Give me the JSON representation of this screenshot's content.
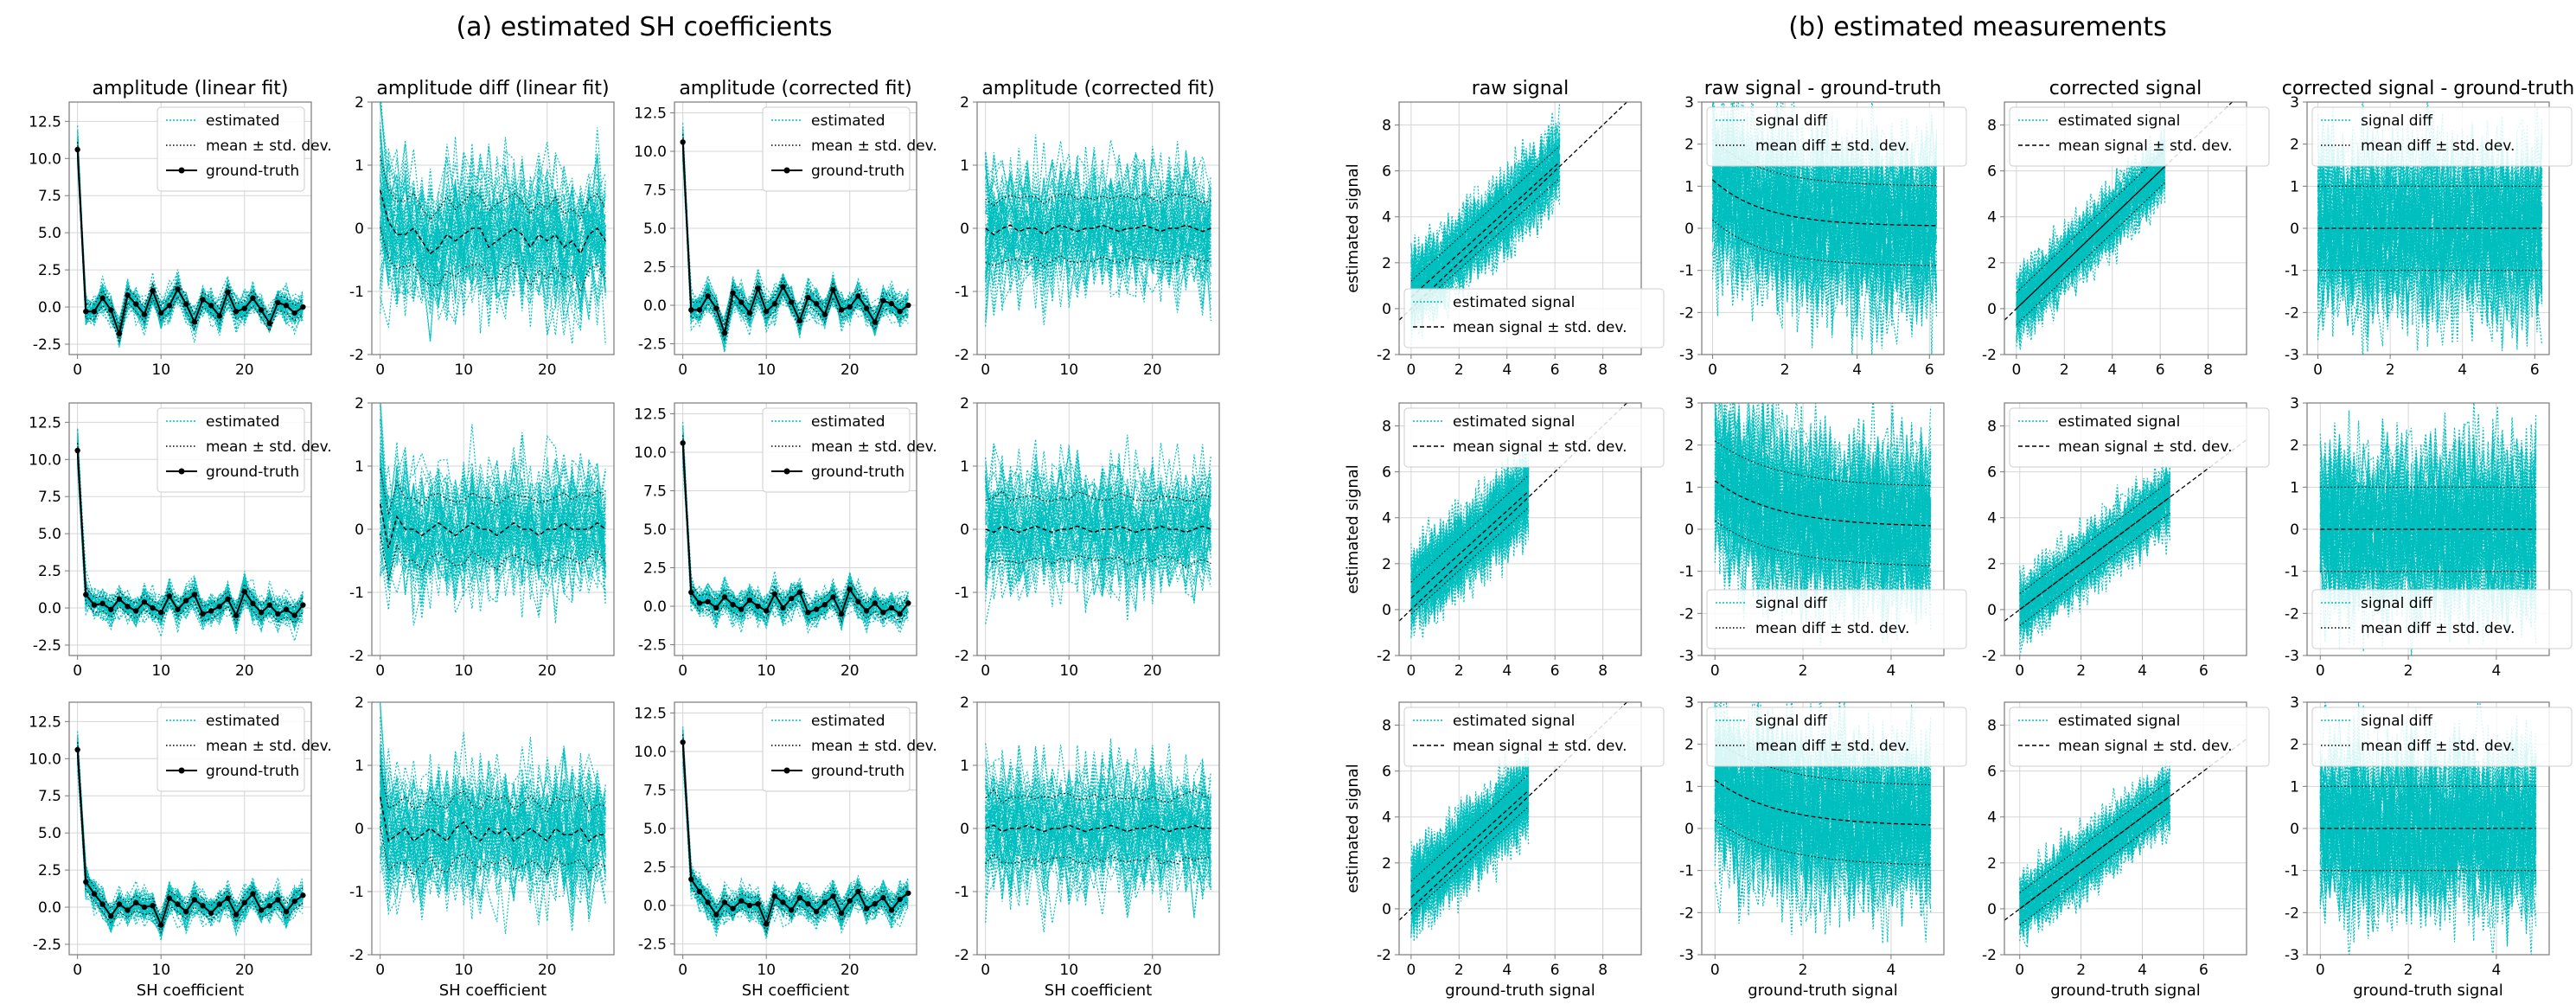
{
  "titles": {
    "a": "(a) estimated SH coefficients",
    "b": "(b) estimated measurements"
  },
  "colors": {
    "cyan": "#00bfbf",
    "black": "#000000",
    "grid": "#d6d6d6",
    "frame": "#7a7a7a"
  },
  "chart_data": [
    {
      "type": "line",
      "group": "a",
      "row": 0,
      "col": 0,
      "kind": "amp",
      "title": "amplitude (linear fit)",
      "xlabel": "",
      "ylabel": "",
      "xlim": [
        -1,
        28
      ],
      "ylim": [
        -3.2,
        13.8
      ],
      "xticks": [
        "0",
        "10",
        "20"
      ],
      "yticks": [
        "-2.5",
        "0.0",
        "2.5",
        "5.0",
        "7.5",
        "10.0",
        "12.5"
      ],
      "legend": [
        "estimated",
        "mean ± std. dev.",
        "ground-truth"
      ],
      "ground_truth": [
        10.6,
        -0.3,
        -0.3,
        0.6,
        -0.2,
        -1.8,
        0.8,
        0.2,
        -0.5,
        1.1,
        -0.4,
        0.1,
        1.2,
        0.2,
        -1.0,
        0.5,
        0.1,
        -0.6,
        1.0,
        -0.3,
        -0.1,
        0.6,
        -0.2,
        -1.1,
        0.3,
        0.1,
        -0.4,
        0.0
      ]
    },
    {
      "type": "line",
      "group": "a",
      "row": 0,
      "col": 1,
      "kind": "diff",
      "title": "amplitude diff (linear fit)",
      "xlabel": "",
      "ylabel": "",
      "xlim": [
        -1,
        28
      ],
      "ylim": [
        -2,
        2
      ],
      "xticks": [
        "0",
        "10",
        "20"
      ],
      "yticks": [
        "-2",
        "-1",
        "0",
        "1",
        "2"
      ],
      "mean": [
        0.6,
        0.1,
        -0.1,
        -0.1,
        0.0,
        -0.2,
        -0.4,
        -0.3,
        -0.1,
        -0.2,
        -0.1,
        0.0,
        0.0,
        -0.3,
        -0.2,
        -0.1,
        0.0,
        -0.1,
        -0.3,
        -0.1,
        -0.2,
        -0.1,
        -0.3,
        -0.2,
        -0.4,
        -0.1,
        0.0,
        -0.2
      ],
      "std": 0.55
    },
    {
      "type": "line",
      "group": "a",
      "row": 0,
      "col": 2,
      "kind": "amp",
      "title": "amplitude (corrected fit)",
      "xlabel": "",
      "ylabel": "",
      "xlim": [
        -1,
        28
      ],
      "ylim": [
        -3.2,
        13.2
      ],
      "xticks": [
        "0",
        "10",
        "20"
      ],
      "yticks": [
        "-2.5",
        "0.0",
        "2.5",
        "5.0",
        "7.5",
        "10.0",
        "12.5"
      ],
      "legend": [
        "estimated",
        "mean ± std. dev.",
        "ground-truth"
      ],
      "ground_truth": [
        10.6,
        -0.3,
        -0.3,
        0.6,
        -0.2,
        -1.8,
        0.8,
        0.2,
        -0.5,
        1.1,
        -0.4,
        0.1,
        1.2,
        0.2,
        -1.0,
        0.5,
        0.1,
        -0.6,
        1.0,
        -0.3,
        -0.1,
        0.6,
        -0.2,
        -1.1,
        0.3,
        0.1,
        -0.4,
        0.0
      ]
    },
    {
      "type": "line",
      "group": "a",
      "row": 0,
      "col": 3,
      "kind": "diff",
      "title": "amplitude (corrected fit)",
      "xlabel": "",
      "ylabel": "",
      "xlim": [
        -1,
        28
      ],
      "ylim": [
        -2,
        2
      ],
      "xticks": [
        "0",
        "10",
        "20"
      ],
      "yticks": [
        "-2",
        "-1",
        "0",
        "1",
        "2"
      ],
      "mean": [
        0.0,
        -0.1,
        0.0,
        0.05,
        -0.05,
        0.0,
        0.0,
        -0.1,
        0.0,
        0.05,
        0.0,
        -0.05,
        0.0,
        0.0,
        0.05,
        0.0,
        -0.05,
        0.0,
        0.0,
        0.05,
        0.0,
        -0.05,
        0.0,
        0.0,
        0.05,
        0.0,
        -0.05,
        0.0
      ],
      "std": 0.5
    },
    {
      "type": "line",
      "group": "a",
      "row": 1,
      "col": 0,
      "kind": "amp",
      "title": "",
      "xlabel": "",
      "ylabel": "",
      "xlim": [
        -1,
        28
      ],
      "ylim": [
        -3.2,
        13.8
      ],
      "xticks": [
        "0",
        "10",
        "20"
      ],
      "yticks": [
        "-2.5",
        "0.0",
        "2.5",
        "5.0",
        "7.5",
        "10.0",
        "12.5"
      ],
      "legend": [
        "estimated",
        "mean ± std. dev.",
        "ground-truth"
      ],
      "ground_truth": [
        10.6,
        0.9,
        0.2,
        0.3,
        -0.1,
        0.6,
        0.1,
        -0.2,
        0.4,
        0.0,
        -0.3,
        0.8,
        -0.1,
        0.5,
        0.9,
        -0.4,
        -0.2,
        0.1,
        0.6,
        -0.5,
        1.1,
        0.3,
        -0.3,
        0.2,
        -0.4,
        -0.1,
        -0.5,
        0.2
      ]
    },
    {
      "type": "line",
      "group": "a",
      "row": 1,
      "col": 1,
      "kind": "diff",
      "title": "",
      "xlabel": "",
      "ylabel": "",
      "xlim": [
        -1,
        28
      ],
      "ylim": [
        -2,
        2
      ],
      "xticks": [
        "0",
        "10",
        "20"
      ],
      "yticks": [
        "-2",
        "-1",
        "0",
        "1",
        "2"
      ],
      "mean": [
        0.4,
        -0.3,
        0.2,
        0.0,
        0.0,
        -0.1,
        0.0,
        0.1,
        0.0,
        -0.1,
        0.0,
        0.1,
        0.0,
        0.0,
        -0.1,
        0.0,
        0.1,
        0.0,
        0.0,
        -0.1,
        0.0,
        0.0,
        0.1,
        0.0,
        0.0,
        0.0,
        0.1,
        0.0
      ],
      "std": 0.5
    },
    {
      "type": "line",
      "group": "a",
      "row": 1,
      "col": 2,
      "kind": "amp",
      "title": "",
      "xlabel": "",
      "ylabel": "",
      "xlim": [
        -1,
        28
      ],
      "ylim": [
        -3.2,
        13.2
      ],
      "xticks": [
        "0",
        "10",
        "20"
      ],
      "yticks": [
        "-2.5",
        "0.0",
        "2.5",
        "5.0",
        "7.5",
        "10.0",
        "12.5"
      ],
      "legend": [
        "estimated",
        "mean ± std. dev.",
        "ground-truth"
      ],
      "ground_truth": [
        10.6,
        0.9,
        0.2,
        0.3,
        -0.1,
        0.6,
        0.1,
        -0.2,
        0.4,
        0.0,
        -0.3,
        0.8,
        -0.1,
        0.5,
        0.9,
        -0.4,
        -0.2,
        0.1,
        0.6,
        -0.5,
        1.1,
        0.3,
        -0.3,
        0.2,
        -0.4,
        -0.1,
        -0.5,
        0.2
      ]
    },
    {
      "type": "line",
      "group": "a",
      "row": 1,
      "col": 3,
      "kind": "diff",
      "title": "",
      "xlabel": "",
      "ylabel": "",
      "xlim": [
        -1,
        28
      ],
      "ylim": [
        -2,
        2
      ],
      "xticks": [
        "0",
        "10",
        "20"
      ],
      "yticks": [
        "-2",
        "-1",
        "0",
        "1",
        "2"
      ],
      "mean": [
        0.0,
        -0.05,
        0.05,
        0.0,
        -0.05,
        0.0,
        0.05,
        0.0,
        -0.05,
        0.0,
        0.0,
        0.05,
        0.0,
        -0.05,
        0.0,
        0.0,
        0.05,
        0.0,
        -0.05,
        0.0,
        0.0,
        0.05,
        0.0,
        0.0,
        -0.05,
        0.0,
        0.05,
        0.0
      ],
      "std": 0.5
    },
    {
      "type": "line",
      "group": "a",
      "row": 2,
      "col": 0,
      "kind": "amp",
      "title": "",
      "xlabel": "SH coefficient",
      "ylabel": "",
      "xlim": [
        -1,
        28
      ],
      "ylim": [
        -3.2,
        13.8
      ],
      "xticks": [
        "0",
        "10",
        "20"
      ],
      "yticks": [
        "-2.5",
        "0.0",
        "2.5",
        "5.0",
        "7.5",
        "10.0",
        "12.5"
      ],
      "legend": [
        "estimated",
        "mean ± std. dev.",
        "ground-truth"
      ],
      "ground_truth": [
        10.6,
        1.7,
        0.9,
        0.2,
        -0.6,
        0.2,
        -0.2,
        0.3,
        0.0,
        0.1,
        -1.2,
        0.6,
        0.2,
        -0.3,
        0.5,
        0.1,
        -0.4,
        0.2,
        0.6,
        -0.5,
        0.3,
        0.9,
        -0.2,
        0.1,
        0.5,
        -0.3,
        0.4,
        0.8
      ]
    },
    {
      "type": "line",
      "group": "a",
      "row": 2,
      "col": 1,
      "kind": "diff",
      "title": "",
      "xlabel": "SH coefficient",
      "ylabel": "",
      "xlim": [
        -1,
        28
      ],
      "ylim": [
        -2,
        2
      ],
      "xticks": [
        "0",
        "10",
        "20"
      ],
      "yticks": [
        "-2",
        "-1",
        "0",
        "1",
        "2"
      ],
      "mean": [
        0.5,
        -0.2,
        -0.1,
        0.0,
        -0.2,
        -0.1,
        0.0,
        -0.1,
        -0.2,
        0.0,
        0.1,
        -0.1,
        -0.2,
        0.0,
        -0.1,
        0.0,
        -0.2,
        -0.1,
        0.0,
        -0.1,
        -0.2,
        0.0,
        -0.1,
        -0.1,
        0.0,
        -0.2,
        -0.1,
        -0.1
      ],
      "std": 0.5
    },
    {
      "type": "line",
      "group": "a",
      "row": 2,
      "col": 2,
      "kind": "amp",
      "title": "",
      "xlabel": "SH coefficient",
      "ylabel": "",
      "xlim": [
        -1,
        28
      ],
      "ylim": [
        -3.2,
        13.2
      ],
      "xticks": [
        "0",
        "10",
        "20"
      ],
      "yticks": [
        "-2.5",
        "0.0",
        "2.5",
        "5.0",
        "7.5",
        "10.0",
        "12.5"
      ],
      "legend": [
        "estimated",
        "mean ± std. dev.",
        "ground-truth"
      ],
      "ground_truth": [
        10.6,
        1.7,
        0.9,
        0.2,
        -0.6,
        0.2,
        -0.2,
        0.3,
        0.0,
        0.1,
        -1.2,
        0.6,
        0.2,
        -0.3,
        0.5,
        0.1,
        -0.4,
        0.2,
        0.6,
        -0.5,
        0.3,
        0.9,
        -0.2,
        0.1,
        0.5,
        -0.3,
        0.4,
        0.8
      ]
    },
    {
      "type": "line",
      "group": "a",
      "row": 2,
      "col": 3,
      "kind": "diff",
      "title": "",
      "xlabel": "SH coefficient",
      "ylabel": "",
      "xlim": [
        -1,
        28
      ],
      "ylim": [
        -2,
        2
      ],
      "xticks": [
        "0",
        "10",
        "20"
      ],
      "yticks": [
        "-2",
        "-1",
        "0",
        "1",
        "2"
      ],
      "mean": [
        0.0,
        0.05,
        -0.05,
        0.0,
        0.0,
        0.05,
        0.0,
        -0.05,
        0.0,
        0.0,
        0.05,
        0.0,
        -0.05,
        0.0,
        0.0,
        0.05,
        0.0,
        -0.05,
        0.0,
        0.0,
        0.05,
        0.0,
        -0.05,
        0.0,
        0.0,
        0.05,
        0.0,
        0.0
      ],
      "std": 0.5
    },
    {
      "type": "line",
      "group": "b",
      "row": 0,
      "col": 0,
      "kind": "sig_raw",
      "title": "raw signal",
      "xlabel": "",
      "ylabel": "estimated signal",
      "xlim": [
        -0.5,
        9.6
      ],
      "ylim": [
        -2,
        9
      ],
      "xticks": [
        "0",
        "2",
        "4",
        "6",
        "8"
      ],
      "yticks": [
        "-2",
        "0",
        "2",
        "4",
        "6",
        "8"
      ],
      "legend": [
        "estimated signal",
        "mean signal ± std. dev."
      ],
      "x_max": 6.2
    },
    {
      "type": "line",
      "group": "b",
      "row": 0,
      "col": 1,
      "kind": "sigdiff_raw",
      "title": "raw signal - ground-truth",
      "xlabel": "",
      "ylabel": "",
      "xlim": [
        -0.3,
        6.4
      ],
      "ylim": [
        -3,
        3
      ],
      "xticks": [
        "0",
        "2",
        "4",
        "6"
      ],
      "yticks": [
        "-3",
        "-2",
        "-1",
        "0",
        "1",
        "2",
        "3"
      ],
      "legend": [
        "signal diff",
        "mean diff ± std. dev."
      ],
      "x_max": 6.2
    },
    {
      "type": "line",
      "group": "b",
      "row": 0,
      "col": 2,
      "kind": "sig_corr",
      "title": "corrected signal",
      "xlabel": "",
      "ylabel": "",
      "xlim": [
        -0.5,
        9.6
      ],
      "ylim": [
        -2,
        9
      ],
      "xticks": [
        "0",
        "2",
        "4",
        "6",
        "8"
      ],
      "yticks": [
        "-2",
        "0",
        "2",
        "4",
        "6",
        "8"
      ],
      "legend": [
        "estimated signal",
        "mean signal ± std. dev."
      ],
      "x_max": 6.2
    },
    {
      "type": "line",
      "group": "b",
      "row": 0,
      "col": 3,
      "kind": "sigdiff_corr",
      "title": "corrected signal - ground-truth",
      "xlabel": "",
      "ylabel": "",
      "xlim": [
        -0.3,
        6.4
      ],
      "ylim": [
        -3,
        3
      ],
      "xticks": [
        "0",
        "2",
        "4",
        "6"
      ],
      "yticks": [
        "-3",
        "-2",
        "-1",
        "0",
        "1",
        "2",
        "3"
      ],
      "legend": [
        "signal diff",
        "mean diff ± std. dev."
      ],
      "x_max": 6.2
    },
    {
      "type": "line",
      "group": "b",
      "row": 1,
      "col": 0,
      "kind": "sig_raw",
      "title": "",
      "xlabel": "",
      "ylabel": "estimated signal",
      "xlim": [
        -0.5,
        9.6
      ],
      "ylim": [
        -2,
        9
      ],
      "xticks": [
        "0",
        "2",
        "4",
        "6",
        "8"
      ],
      "yticks": [
        "-2",
        "0",
        "2",
        "4",
        "6",
        "8"
      ],
      "legend": [
        "estimated signal",
        "mean signal ± std. dev."
      ],
      "x_max": 4.9
    },
    {
      "type": "line",
      "group": "b",
      "row": 1,
      "col": 1,
      "kind": "sigdiff_raw",
      "title": "",
      "xlabel": "",
      "ylabel": "",
      "xlim": [
        -0.3,
        5.2
      ],
      "ylim": [
        -3,
        3
      ],
      "xticks": [
        "0",
        "2",
        "4"
      ],
      "yticks": [
        "-3",
        "-2",
        "-1",
        "0",
        "1",
        "2",
        "3"
      ],
      "legend": [
        "signal diff",
        "mean diff ± std. dev."
      ],
      "x_max": 4.9
    },
    {
      "type": "line",
      "group": "b",
      "row": 1,
      "col": 2,
      "kind": "sig_corr",
      "title": "",
      "xlabel": "",
      "ylabel": "",
      "xlim": [
        -0.5,
        7.4
      ],
      "ylim": [
        -2,
        9
      ],
      "xticks": [
        "0",
        "2",
        "4",
        "6"
      ],
      "yticks": [
        "-2",
        "0",
        "2",
        "4",
        "6",
        "8"
      ],
      "legend": [
        "estimated signal",
        "mean signal ± std. dev."
      ],
      "x_max": 4.9
    },
    {
      "type": "line",
      "group": "b",
      "row": 1,
      "col": 3,
      "kind": "sigdiff_corr",
      "title": "",
      "xlabel": "",
      "ylabel": "",
      "xlim": [
        -0.3,
        5.2
      ],
      "ylim": [
        -3,
        3
      ],
      "xticks": [
        "0",
        "2",
        "4"
      ],
      "yticks": [
        "-3",
        "-2",
        "-1",
        "0",
        "1",
        "2",
        "3"
      ],
      "legend": [
        "signal diff",
        "mean diff ± std. dev."
      ],
      "x_max": 4.9
    },
    {
      "type": "line",
      "group": "b",
      "row": 2,
      "col": 0,
      "kind": "sig_raw",
      "title": "",
      "xlabel": "ground-truth signal",
      "ylabel": "estimated signal",
      "xlim": [
        -0.5,
        9.6
      ],
      "ylim": [
        -2,
        9
      ],
      "xticks": [
        "0",
        "2",
        "4",
        "6",
        "8"
      ],
      "yticks": [
        "-2",
        "0",
        "2",
        "4",
        "6",
        "8"
      ],
      "legend": [
        "estimated signal",
        "mean signal ± std. dev."
      ],
      "x_max": 4.9
    },
    {
      "type": "line",
      "group": "b",
      "row": 2,
      "col": 1,
      "kind": "sigdiff_raw",
      "title": "",
      "xlabel": "ground-truth signal",
      "ylabel": "",
      "xlim": [
        -0.3,
        5.2
      ],
      "ylim": [
        -3,
        3
      ],
      "xticks": [
        "0",
        "2",
        "4"
      ],
      "yticks": [
        "-3",
        "-2",
        "-1",
        "0",
        "1",
        "2",
        "3"
      ],
      "legend": [
        "signal diff",
        "mean diff ± std. dev."
      ],
      "x_max": 4.9
    },
    {
      "type": "line",
      "group": "b",
      "row": 2,
      "col": 2,
      "kind": "sig_corr",
      "title": "",
      "xlabel": "ground-truth signal",
      "ylabel": "",
      "xlim": [
        -0.5,
        7.4
      ],
      "ylim": [
        -2,
        9
      ],
      "xticks": [
        "0",
        "2",
        "4",
        "6"
      ],
      "yticks": [
        "-2",
        "0",
        "2",
        "4",
        "6",
        "8"
      ],
      "legend": [
        "estimated signal",
        "mean signal ± std. dev."
      ],
      "x_max": 4.9
    },
    {
      "type": "line",
      "group": "b",
      "row": 2,
      "col": 3,
      "kind": "sigdiff_corr",
      "title": "",
      "xlabel": "ground-truth signal",
      "ylabel": "",
      "xlim": [
        -0.3,
        5.2
      ],
      "ylim": [
        -3,
        3
      ],
      "xticks": [
        "0",
        "2",
        "4"
      ],
      "yticks": [
        "-3",
        "-2",
        "-1",
        "0",
        "1",
        "2",
        "3"
      ],
      "legend": [
        "signal diff",
        "mean diff ± std. dev."
      ],
      "x_max": 4.9
    }
  ]
}
